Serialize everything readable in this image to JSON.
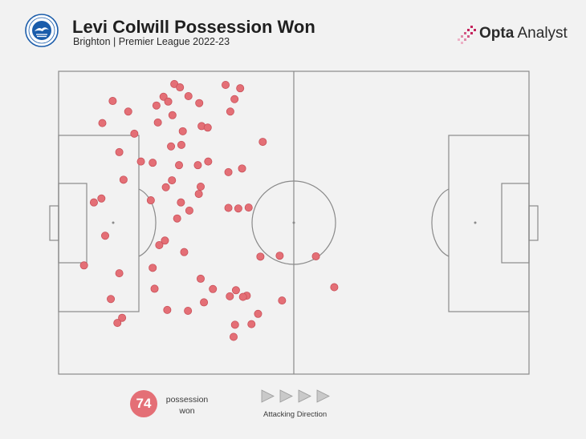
{
  "header": {
    "title": "Levi Colwill Possession Won",
    "subtitle": "Brighton | Premier League 2022-23",
    "brand_bold": "Opta",
    "brand_rest": " Analyst",
    "crest_icon": "brighton-crest-icon"
  },
  "legend": {
    "count": "74",
    "count_label": "possession won",
    "direction_label": "Attacking Direction",
    "arrow_icon": "triangle-right-icon"
  },
  "colors": {
    "background": "#f2f2f2",
    "pitch_lines": "#8a8a8a",
    "marker_fill": "#e46f76",
    "marker_stroke": "#c9515a",
    "brand_accent": "#c4235c"
  },
  "chart_data": {
    "type": "scatter",
    "title": "Levi Colwill Possession Won",
    "subtitle": "Brighton | Premier League 2022-23",
    "x_range": [
      0,
      100
    ],
    "y_range": [
      0,
      100
    ],
    "attacking_direction": "left-to-right",
    "points": [
      [
        24.6,
        4.2
      ],
      [
        25.8,
        5.3
      ],
      [
        22.3,
        8.4
      ],
      [
        23.3,
        10.0
      ],
      [
        35.5,
        4.5
      ],
      [
        38.6,
        5.6
      ],
      [
        11.5,
        9.8
      ],
      [
        20.8,
        11.3
      ],
      [
        14.8,
        13.3
      ],
      [
        27.6,
        8.2
      ],
      [
        29.9,
        10.5
      ],
      [
        21.1,
        16.9
      ],
      [
        24.2,
        14.5
      ],
      [
        36.5,
        13.3
      ],
      [
        37.4,
        9.2
      ],
      [
        9.3,
        17.1
      ],
      [
        26.4,
        19.8
      ],
      [
        23.9,
        24.8
      ],
      [
        16.1,
        20.6
      ],
      [
        30.4,
        18.1
      ],
      [
        31.7,
        18.6
      ],
      [
        26.1,
        24.3
      ],
      [
        12.9,
        26.7
      ],
      [
        43.4,
        23.3
      ],
      [
        13.8,
        35.8
      ],
      [
        31.8,
        29.8
      ],
      [
        17.5,
        29.8
      ],
      [
        20.0,
        30.2
      ],
      [
        25.6,
        31.0
      ],
      [
        29.6,
        31.0
      ],
      [
        24.1,
        36.0
      ],
      [
        36.1,
        33.3
      ],
      [
        39.0,
        32.1
      ],
      [
        22.8,
        38.3
      ],
      [
        30.2,
        38.1
      ],
      [
        7.5,
        43.3
      ],
      [
        29.8,
        40.5
      ],
      [
        19.6,
        42.6
      ],
      [
        9.1,
        42.0
      ],
      [
        26.0,
        43.3
      ],
      [
        27.8,
        46.0
      ],
      [
        25.2,
        48.6
      ],
      [
        36.1,
        45.1
      ],
      [
        38.2,
        45.3
      ],
      [
        40.4,
        45.0
      ],
      [
        22.6,
        55.9
      ],
      [
        21.4,
        57.4
      ],
      [
        9.9,
        54.3
      ],
      [
        5.4,
        64.1
      ],
      [
        26.7,
        59.7
      ],
      [
        12.9,
        66.7
      ],
      [
        42.9,
        61.2
      ],
      [
        23.1,
        78.8
      ],
      [
        20.4,
        71.8
      ],
      [
        40.0,
        74.1
      ],
      [
        11.1,
        75.2
      ],
      [
        13.5,
        81.4
      ],
      [
        27.5,
        79.1
      ],
      [
        20.0,
        64.9
      ],
      [
        30.2,
        68.5
      ],
      [
        32.8,
        71.9
      ],
      [
        39.2,
        74.5
      ],
      [
        37.7,
        72.3
      ],
      [
        30.9,
        76.3
      ],
      [
        41.0,
        83.5
      ],
      [
        36.4,
        74.3
      ],
      [
        12.5,
        83.1
      ],
      [
        37.5,
        83.7
      ],
      [
        37.2,
        87.7
      ],
      [
        42.4,
        80.1
      ],
      [
        47.0,
        60.9
      ],
      [
        54.7,
        61.1
      ],
      [
        58.6,
        71.3
      ],
      [
        47.5,
        75.7
      ]
    ]
  }
}
